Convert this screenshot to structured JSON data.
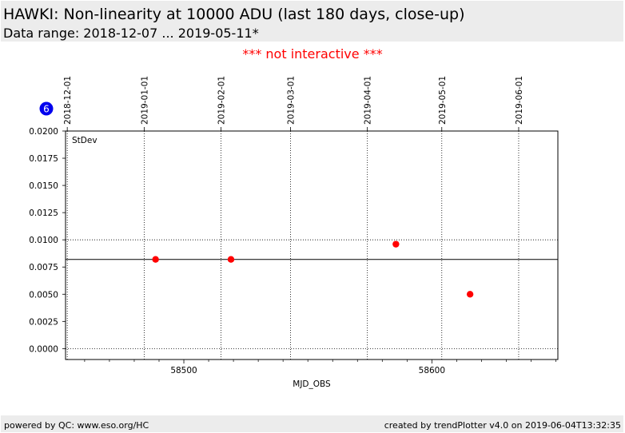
{
  "header": {
    "title": "HAWKI: Non-linearity at 10000 ADU (last 180 days, close-up)",
    "subtitle": "Data range: 2018-12-07 ... 2019-05-11*"
  },
  "notice": "*** not interactive ***",
  "badge": {
    "value": "6",
    "color": "#0000ee"
  },
  "footer": {
    "left": "powered by QC: www.eso.org/HC",
    "right": "created by trendPlotter v4.0 on 2019-06-04T13:32:35"
  },
  "colors": {
    "points": "#ff0000",
    "mean_line": "#000000",
    "grid": "#000000"
  },
  "chart_data": {
    "type": "scatter",
    "panel_label": "StDev",
    "xlabel": "MJD_OBS",
    "ylabel": "",
    "xlim": [
      58452.3,
      58650.8
    ],
    "ylim": [
      -0.001,
      0.02
    ],
    "x_ticks": [
      58500,
      58600
    ],
    "y_ticks": [
      0.0,
      0.0025,
      0.005,
      0.0075,
      0.01,
      0.0125,
      0.015,
      0.0175,
      0.02
    ],
    "y_tick_labels": [
      "0.0000",
      "0.0025",
      "0.0050",
      "0.0075",
      "0.0100",
      "0.0125",
      "0.0150",
      "0.0175",
      "0.0200"
    ],
    "top_axis_dates": [
      {
        "label": "2018-12-01",
        "mjd": 58453
      },
      {
        "label": "2019-01-01",
        "mjd": 58484
      },
      {
        "label": "2019-02-01",
        "mjd": 58515
      },
      {
        "label": "2019-03-01",
        "mjd": 58543
      },
      {
        "label": "2019-04-01",
        "mjd": 58574
      },
      {
        "label": "2019-05-01",
        "mjd": 58604
      },
      {
        "label": "2019-06-01",
        "mjd": 58635
      }
    ],
    "horizontal_dotted_lines": [
      0.0,
      0.01
    ],
    "mean_line": 0.0082,
    "points": [
      {
        "x": 58488.6,
        "y": 0.0082
      },
      {
        "x": 58519.0,
        "y": 0.0082
      },
      {
        "x": 58585.5,
        "y": 0.0096
      },
      {
        "x": 58615.4,
        "y": 0.005
      }
    ]
  }
}
